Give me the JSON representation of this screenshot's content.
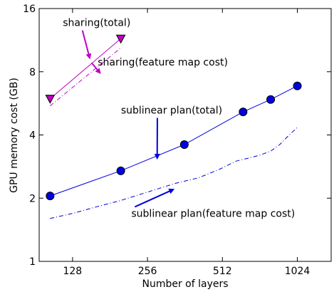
{
  "chart_data": {
    "type": "line",
    "title": "",
    "xlabel": "Number of layers",
    "ylabel": "GPU memory cost (GB)",
    "x_scale": "log2",
    "y_scale": "log2",
    "xlim": [
      94,
      1400
    ],
    "ylim": [
      1,
      16
    ],
    "xticks": [
      128,
      256,
      512,
      1024
    ],
    "xtick_labels": [
      "128",
      "256",
      "512",
      "1024"
    ],
    "yticks": [
      1,
      2,
      4,
      8,
      16
    ],
    "ytick_labels": [
      "1",
      "2",
      "4",
      "8",
      "16"
    ],
    "grid": false,
    "legend": "none",
    "series": [
      {
        "key": "sharing_total",
        "color": "#c000c0",
        "linestyle": "solid",
        "marker": "triangle-down",
        "x": [
          104,
          200
        ],
        "y": [
          5.95,
          11.5
        ]
      },
      {
        "key": "sharing_feature",
        "color": "#c000c0",
        "linestyle": "dashdot",
        "marker": "none",
        "x": [
          104,
          200
        ],
        "y": [
          5.5,
          10.4
        ]
      },
      {
        "key": "sublinear_total",
        "color": "#0000e0",
        "linestyle": "solid",
        "marker": "circle",
        "x": [
          104,
          200,
          360,
          620,
          800,
          1024
        ],
        "y": [
          2.05,
          2.7,
          3.6,
          5.15,
          5.9,
          6.85
        ]
      },
      {
        "key": "sublinear_feature",
        "color": "#0000e0",
        "linestyle": "dashdot",
        "marker": "none",
        "x": [
          104,
          130,
          160,
          200,
          260,
          330,
          410,
          500,
          580,
          650,
          720,
          800,
          870,
          940,
          1024
        ],
        "y": [
          1.6,
          1.7,
          1.82,
          1.95,
          2.15,
          2.35,
          2.5,
          2.75,
          3.0,
          3.1,
          3.2,
          3.35,
          3.6,
          3.95,
          4.35
        ]
      }
    ],
    "annotations": [
      {
        "key": "ann_sharing_total",
        "text": "sharing(total)",
        "color": "#c000c0",
        "label_x": 160,
        "label_y": 13.2,
        "target_x": 150,
        "target_y": 9.3
      },
      {
        "key": "ann_sharing_feature",
        "text": "sharing(feature map cost)",
        "color": "#c000c0",
        "label_x": 295,
        "label_y": 8.55,
        "target_x": 165,
        "target_y": 7.9
      },
      {
        "key": "ann_sublinear_total",
        "text": "sublinear plan(total)",
        "color": "#0000e0",
        "label_x": 320,
        "label_y": 5.05,
        "target_x": 280,
        "target_y": 3.1
      },
      {
        "key": "ann_sublinear_feature",
        "text": "sublinear plan(feature map cost)",
        "color": "#0000e0",
        "label_x": 470,
        "label_y": 1.63,
        "target_x": 325,
        "target_y": 2.2
      }
    ]
  }
}
